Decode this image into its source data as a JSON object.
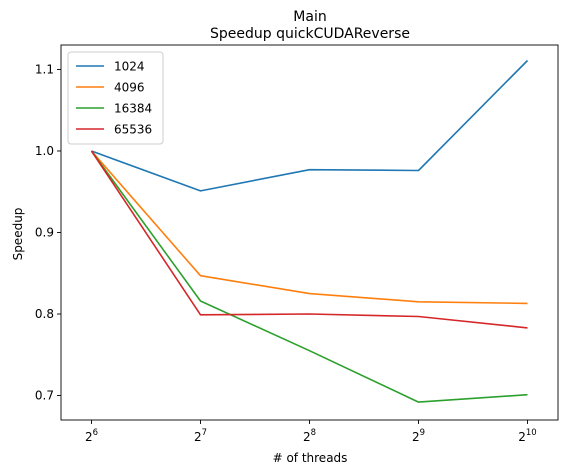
{
  "chart_data": {
    "type": "line",
    "title": "Main",
    "subtitle": "Speedup quickCUDAReverse",
    "xlabel": "# of threads",
    "ylabel": "Speedup",
    "x_scale": "log2",
    "x": [
      64,
      128,
      256,
      512,
      1024
    ],
    "x_tick_labels": [
      {
        "base": "2",
        "exp": "6"
      },
      {
        "base": "2",
        "exp": "7"
      },
      {
        "base": "2",
        "exp": "8"
      },
      {
        "base": "2",
        "exp": "9"
      },
      {
        "base": "2",
        "exp": "10"
      }
    ],
    "ylim": [
      0.67,
      1.13
    ],
    "y_ticks": [
      0.7,
      0.8,
      0.9,
      1.0,
      1.1
    ],
    "y_tick_labels": [
      "0.7",
      "0.8",
      "0.9",
      "1.0",
      "1.1"
    ],
    "grid": false,
    "legend_position": "top-left",
    "series": [
      {
        "name": "1024",
        "color": "#1f77b4",
        "values": [
          1.0,
          0.951,
          0.977,
          0.976,
          1.111
        ]
      },
      {
        "name": "4096",
        "color": "#ff7f0e",
        "values": [
          1.0,
          0.847,
          0.825,
          0.815,
          0.813
        ]
      },
      {
        "name": "16384",
        "color": "#2ca02c",
        "values": [
          1.0,
          0.816,
          0.755,
          0.692,
          0.701
        ]
      },
      {
        "name": "65536",
        "color": "#d62728",
        "values": [
          1.0,
          0.799,
          0.8,
          0.797,
          0.783
        ]
      }
    ]
  }
}
